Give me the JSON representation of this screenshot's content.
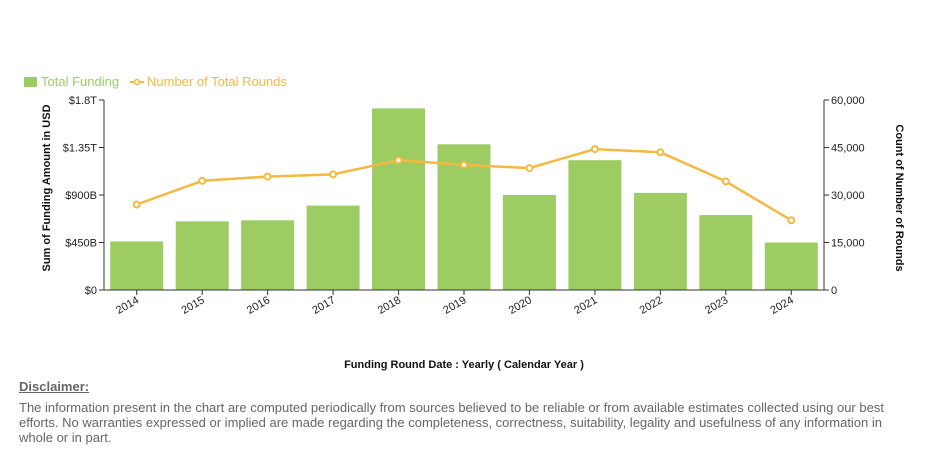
{
  "chart_data": {
    "type": "bar",
    "categories": [
      "2014",
      "2015",
      "2016",
      "2017",
      "2018",
      "2019",
      "2020",
      "2021",
      "2022",
      "2023",
      "2024"
    ],
    "series": [
      {
        "name": "Total Funding",
        "type": "bar",
        "axis": "left",
        "color": "#9dcc63",
        "values": [
          230,
          325,
          330,
          400,
          860,
          690,
          450,
          615,
          460,
          355,
          225
        ]
      },
      {
        "name": "Number of Total Rounds",
        "type": "line",
        "axis": "right",
        "color": "#f5b942",
        "values": [
          27000,
          34500,
          35800,
          36500,
          41000,
          39500,
          38500,
          44500,
          43500,
          34300,
          22000
        ]
      }
    ],
    "y_left": {
      "label": "Sum of Funding Amount in USD",
      "ylim": [
        0,
        900
      ],
      "ticks": [
        0,
        225,
        450,
        675,
        900
      ],
      "tick_labels": [
        "$0",
        "$450B",
        "$900B",
        "$1.35T",
        "$1.8T"
      ]
    },
    "y_right": {
      "label": "Count of Number of Rounds",
      "ylim": [
        0,
        60000
      ],
      "ticks": [
        0,
        15000,
        30000,
        45000,
        60000
      ],
      "tick_labels": [
        "0",
        "15,000",
        "30,000",
        "45,000",
        "60,000"
      ]
    },
    "xlabel": "Funding Round Date : Yearly ( Calendar Year )",
    "grid": false,
    "legend": "top-left"
  },
  "disclaimer": {
    "title": "Disclaimer:",
    "text": "The information present in the chart are computed periodically from sources believed to be reliable or from available estimates collected using our best efforts. No warranties expressed or implied are made regarding the completeness, correctness, suitability, legality and usefulness of any information in whole or in part."
  }
}
